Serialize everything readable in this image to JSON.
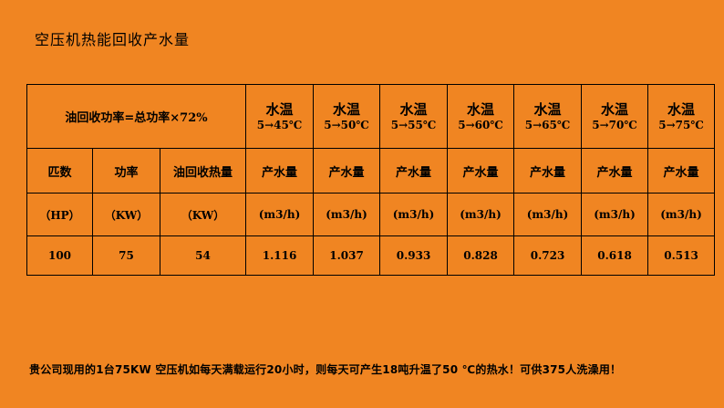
{
  "title": "空压机热能回收产水量",
  "table": {
    "formula": "油回收功率=总功率×72%",
    "water_temp_headers": [
      {
        "label": "水温",
        "range": "5→45℃"
      },
      {
        "label": "水温",
        "range": "5→50℃"
      },
      {
        "label": "水温",
        "range": "5→55℃"
      },
      {
        "label": "水温",
        "range": "5→60℃"
      },
      {
        "label": "水温",
        "range": "5→65℃"
      },
      {
        "label": "水温",
        "range": "5→70℃"
      },
      {
        "label": "水温",
        "range": "5→75℃"
      }
    ],
    "label_row": [
      "匹数",
      "功率",
      "油回收热量",
      "产水量",
      "产水量",
      "产水量",
      "产水量",
      "产水量",
      "产水量",
      "产水量"
    ],
    "unit_row": [
      "（HP）",
      "（KW）",
      "（KW）",
      "(m3/h)",
      "(m3/h)",
      "(m3/h)",
      "(m3/h)",
      "(m3/h)",
      "(m3/h)",
      "(m3/h)"
    ],
    "value_row": [
      "100",
      "75",
      "54",
      "1.116",
      "1.037",
      "0.933",
      "0.828",
      "0.723",
      "0.618",
      "0.513"
    ]
  },
  "footer": "贵公司现用的1台75KW 空压机如每天满载运行20小时，则每天可产生18吨升温了50 ℃的热水！可供375人洗澡用！"
}
